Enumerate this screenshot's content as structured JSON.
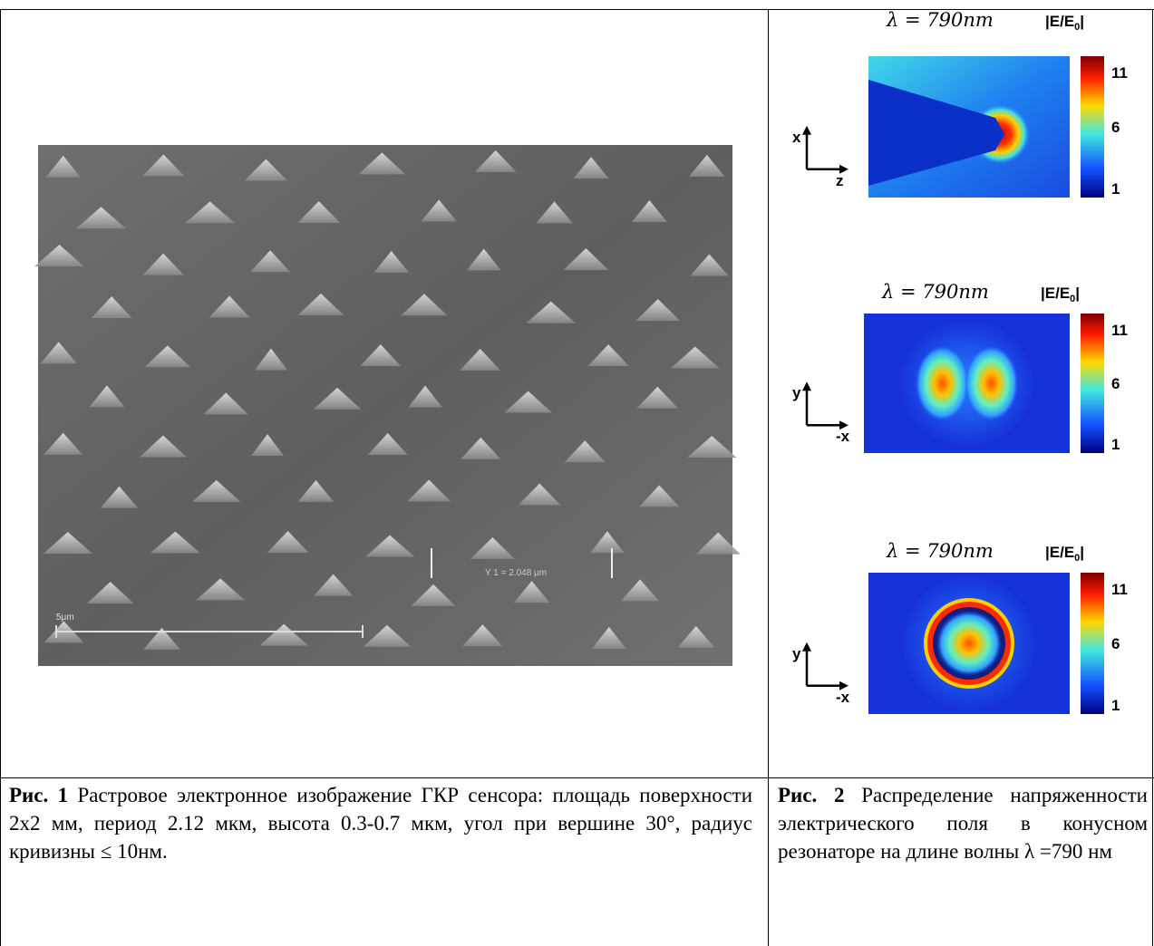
{
  "figure1": {
    "scale_bar_label": "5μm",
    "measure_label": "Y 1 = 2.048 μm"
  },
  "figure2": {
    "panels": [
      {
        "title": "λ = 790nm",
        "scale": {
          "text": "|E/E",
          "sub": "0",
          "end": "|"
        },
        "ticks": [
          11,
          6,
          1
        ],
        "axis_vertical": "x",
        "axis_horizontal": "z"
      },
      {
        "title": "λ = 790nm",
        "scale": {
          "text": "|E/E",
          "sub": "0",
          "end": "|"
        },
        "ticks": [
          11,
          6,
          1
        ],
        "axis_vertical": "y",
        "axis_horizontal": "-x"
      },
      {
        "title": "λ = 790nm",
        "scale": {
          "text": "|E/E",
          "sub": "0",
          "end": "|"
        },
        "ticks": [
          11,
          6,
          1
        ],
        "axis_vertical": "y",
        "axis_horizontal": "-x"
      }
    ]
  },
  "captions": {
    "left": {
      "label": "Рис. 1",
      "text": "Растровое электронное изображение ГКР сенсора: площадь поверхности 2x2 мм, период 2.12 мкм, высота 0.3-0.7 мкм, угол при вершине 30°, радиус кривизны ≤ 10нм."
    },
    "right": {
      "label": "Рис. 2",
      "text": "Распределение напряженности электрического поля в конусном резонаторе на длине волны λ =790 нм"
    }
  }
}
